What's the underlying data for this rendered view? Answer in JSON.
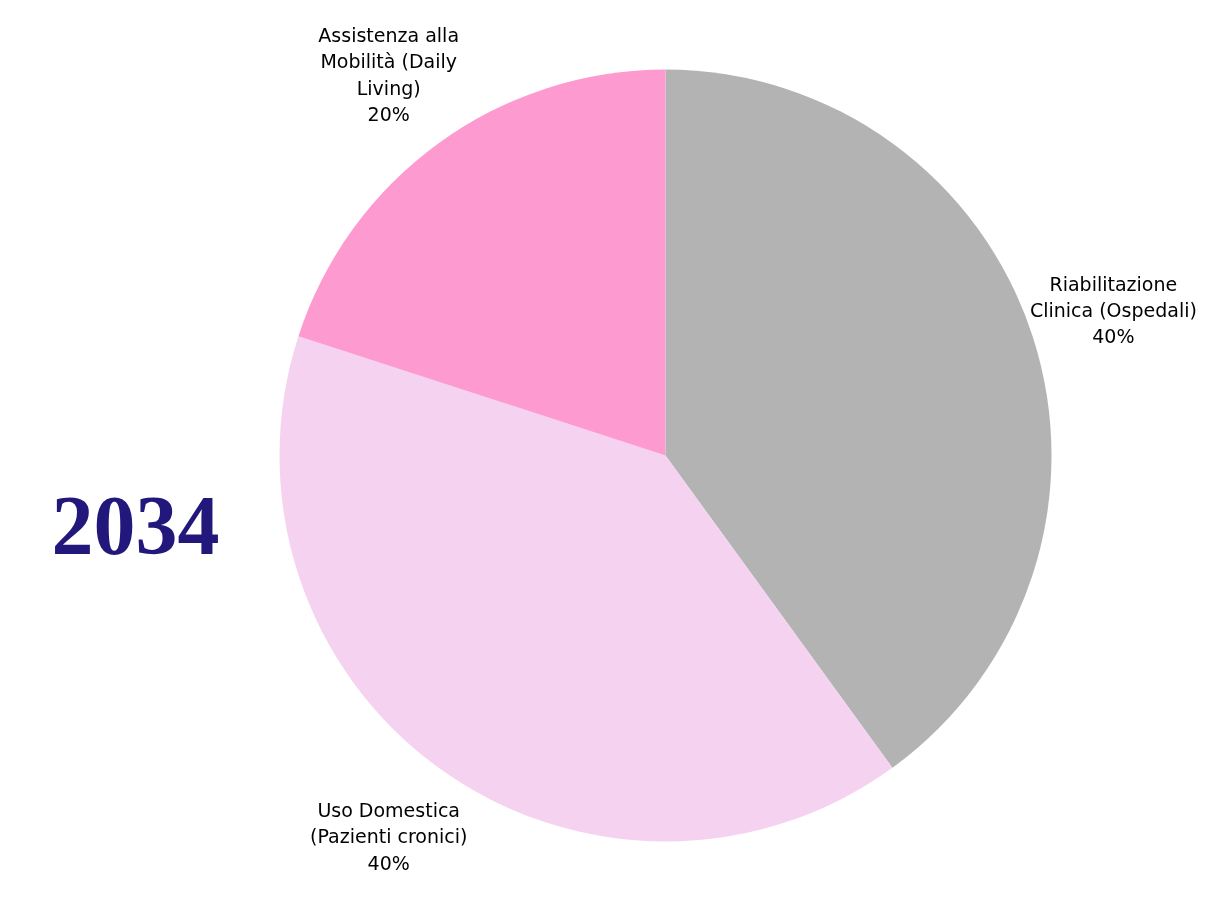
{
  "chart_data": {
    "type": "pie",
    "title": "2034",
    "categories": [
      "Riabilitazione Clinica (Ospedali)",
      "Uso Domestica (Pazienti cronici)",
      "Assistenza alla Mobilità (Daily Living)"
    ],
    "values": [
      40,
      40,
      20
    ],
    "colors": [
      "#b3b3b3",
      "#f5d3f0",
      "#fd9bd0"
    ],
    "value_labels": [
      "40%",
      "40%",
      "20%"
    ]
  }
}
